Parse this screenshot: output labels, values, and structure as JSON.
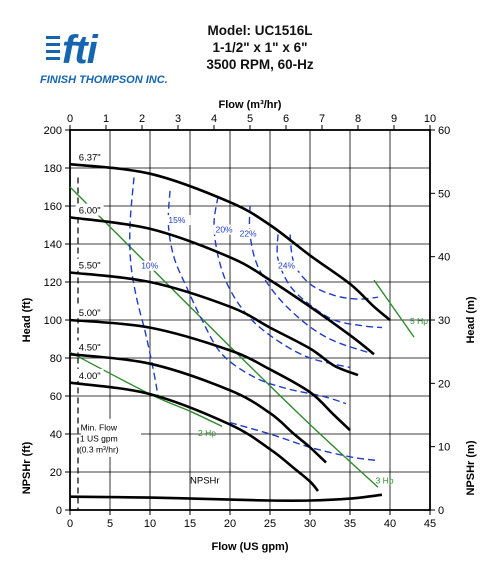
{
  "header": {
    "logo_mark": "fti",
    "company": "FINISH THOMPSON INC.",
    "model_lines": [
      "Model: UC1516L",
      "1-1/2\" x 1\" x 6\"",
      "3500 RPM, 60-Hz"
    ]
  },
  "colors": {
    "curve": "#000000",
    "efficiency": "#1f3cc8",
    "power": "#2e8b2e",
    "grid": "#000000"
  },
  "chart_data": {
    "type": "line",
    "xlabel": "Flow (US gpm)",
    "x2label": "Flow (m³/hr)",
    "ylabel": "Head (ft)",
    "ylabel_lower": "NPSHr (ft)",
    "y2label": "Head (m)",
    "y2label_lower": "NPSHr (m)",
    "xlim": [
      0,
      45
    ],
    "x2lim": [
      0,
      10
    ],
    "ylim": [
      0,
      200
    ],
    "y2lim": [
      0,
      60
    ],
    "xticks": [
      0,
      5,
      10,
      15,
      20,
      25,
      30,
      35,
      40,
      45
    ],
    "x2ticks": [
      0,
      1,
      2,
      3,
      4,
      5,
      6,
      7,
      8,
      9,
      10
    ],
    "yticks": [
      0,
      20,
      40,
      60,
      80,
      100,
      120,
      140,
      160,
      180,
      200
    ],
    "y2ticks": [
      0,
      10,
      20,
      30,
      40,
      50,
      60
    ],
    "grid": true,
    "impeller_curves": [
      {
        "name": "6.37\"",
        "x": [
          0,
          10,
          20,
          25,
          30,
          35,
          38,
          40
        ],
        "y": [
          182,
          177,
          162,
          150,
          134,
          119,
          107,
          100
        ]
      },
      {
        "name": "6.00\"",
        "x": [
          0,
          10,
          20,
          25,
          30,
          35,
          38
        ],
        "y": [
          154,
          148,
          133,
          121,
          107,
          92,
          82
        ]
      },
      {
        "name": "5.50\"",
        "x": [
          0,
          10,
          20,
          25,
          30,
          33,
          36
        ],
        "y": [
          125,
          120,
          107,
          96,
          85,
          76,
          71
        ]
      },
      {
        "name": "5.00\"",
        "x": [
          0,
          10,
          20,
          25,
          30,
          33,
          35
        ],
        "y": [
          100,
          96,
          84,
          74,
          62,
          50,
          42
        ]
      },
      {
        "name": "4.50\"",
        "x": [
          0,
          10,
          20,
          25,
          28,
          30,
          32
        ],
        "y": [
          82,
          77,
          63,
          51,
          40,
          33,
          25
        ]
      },
      {
        "name": "4.00\"",
        "x": [
          0,
          10,
          20,
          25,
          28,
          30,
          31
        ],
        "y": [
          67,
          61,
          45,
          32,
          22,
          15,
          10
        ]
      }
    ],
    "npshr": {
      "label": "NPSHr",
      "x": [
        0,
        10,
        20,
        25,
        30,
        35,
        39
      ],
      "y": [
        7,
        6.5,
        5.5,
        5,
        5,
        6,
        8
      ]
    },
    "efficiency_curves": [
      {
        "label": "10%",
        "x": [
          8,
          7.5,
          7.6,
          8.3,
          9.5,
          10.5,
          11
        ],
        "y": [
          175,
          150,
          130,
          112,
          92,
          72,
          60
        ]
      },
      {
        "label": "15%",
        "x": [
          12.5,
          12.3,
          13,
          14.5,
          16.5,
          19,
          23,
          27,
          31.5,
          34.5
        ],
        "y": [
          168,
          150,
          133,
          118,
          100,
          82,
          70,
          64,
          60,
          56
        ]
      },
      {
        "label": "20%",
        "x": [
          18.5,
          18,
          18.6,
          20,
          22.5,
          26,
          30,
          35
        ],
        "y": [
          165,
          150,
          132,
          116,
          101,
          89,
          80,
          75
        ]
      },
      {
        "label": "22%",
        "x": [
          22.5,
          22.5,
          23.5,
          26,
          29.5,
          33,
          38
        ],
        "y": [
          160,
          145,
          128,
          112,
          98,
          89,
          82
        ]
      },
      {
        "label": "24%",
        "x": [
          26,
          26,
          27.5,
          30,
          33,
          36.5,
          39
        ],
        "y": [
          145,
          132,
          118,
          108,
          100,
          97,
          96
        ]
      },
      {
        "label": "",
        "x": [
          27.5,
          28,
          30,
          33,
          36,
          38.5
        ],
        "y": [
          145,
          130,
          119,
          113,
          111,
          112
        ]
      },
      {
        "label": "",
        "x": [
          20,
          25,
          30,
          35,
          38.5
        ],
        "y": [
          46,
          40,
          33,
          28,
          26
        ]
      }
    ],
    "power_lines": [
      {
        "label": "2 Hp",
        "x": [
          0,
          10,
          15,
          19
        ],
        "y": [
          83,
          61,
          52,
          44
        ]
      },
      {
        "label": "3 Hp",
        "x": [
          0,
          10,
          20,
          30,
          38.5
        ],
        "y": [
          170,
          128,
          86,
          45,
          12
        ]
      },
      {
        "label": "5 Hp",
        "x": [
          38,
          43
        ],
        "y": [
          121,
          91
        ]
      }
    ],
    "min_flow_note": [
      "Min. Flow",
      "1 US gpm",
      "(0.3 m³/hr)"
    ]
  }
}
